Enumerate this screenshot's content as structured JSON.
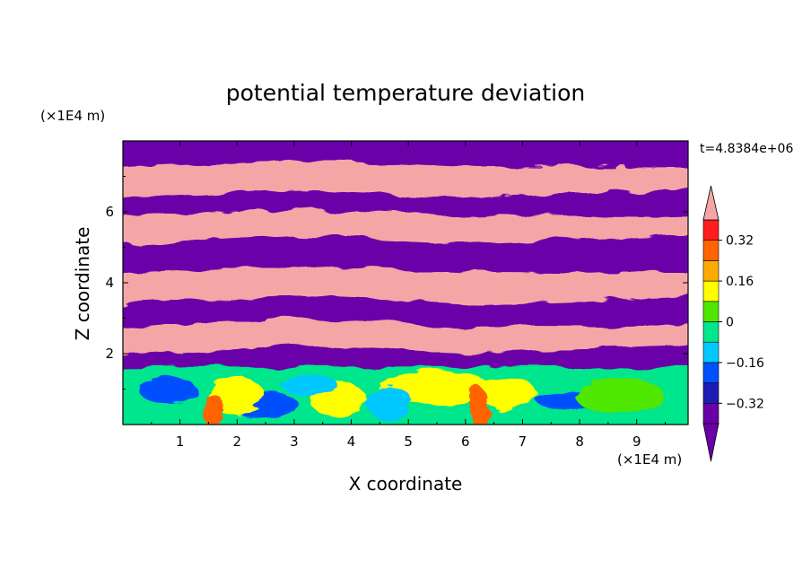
{
  "chart_data": {
    "type": "heatmap",
    "title": "potential temperature deviation",
    "xlabel": "X coordinate",
    "ylabel": "Z coordinate",
    "x_unit": "(×1E4 m)",
    "y_unit": "(×1E4 m)",
    "time_label": "t=4.8384e+06",
    "xlim": [
      0,
      9.9
    ],
    "ylim": [
      0,
      8
    ],
    "x_ticks": [
      1,
      2,
      3,
      4,
      5,
      6,
      7,
      8,
      9
    ],
    "x_tick_labels": [
      "1",
      "2",
      "3",
      "4",
      "5",
      "6",
      "7",
      "8",
      "9"
    ],
    "y_ticks": [
      2,
      4,
      6
    ],
    "y_tick_labels": [
      "2",
      "4",
      "6"
    ],
    "colorbar": {
      "levels": [
        -0.4,
        -0.32,
        -0.24,
        -0.16,
        -0.08,
        0,
        0.08,
        0.16,
        0.24,
        0.32,
        0.4
      ],
      "label_values": [
        0.32,
        0.16,
        0,
        -0.16,
        -0.32
      ],
      "labels": [
        "0.32",
        "0.16",
        "0",
        "−0.16",
        "−0.32"
      ],
      "colors": [
        "#6a00a8",
        "#1c1cb4",
        "#0050ff",
        "#00c8ff",
        "#00e68c",
        "#50e600",
        "#ffff00",
        "#ffaa00",
        "#ff6400",
        "#ff1e1e"
      ],
      "over_color": "#f4a6a6",
      "under_color": "#6a00a8"
    },
    "bands": [
      {
        "range": [
          0,
          1.6
        ],
        "description": "mixed layer, values between -0.32 and 0.4"
      },
      {
        "range": [
          1.6,
          2.1
        ],
        "value": "under"
      },
      {
        "range": [
          2.1,
          2.9
        ],
        "value": "over"
      },
      {
        "range": [
          2.9,
          3.5
        ],
        "value": "under"
      },
      {
        "range": [
          3.5,
          4.4
        ],
        "value": "over"
      },
      {
        "range": [
          4.4,
          5.2
        ],
        "value": "under"
      },
      {
        "range": [
          5.2,
          6.0
        ],
        "value": "over"
      },
      {
        "range": [
          6.0,
          6.5
        ],
        "value": "under"
      },
      {
        "range": [
          6.5,
          7.4
        ],
        "value": "over"
      },
      {
        "range": [
          7.4,
          8.0
        ],
        "value": "under"
      }
    ],
    "grid": false
  }
}
